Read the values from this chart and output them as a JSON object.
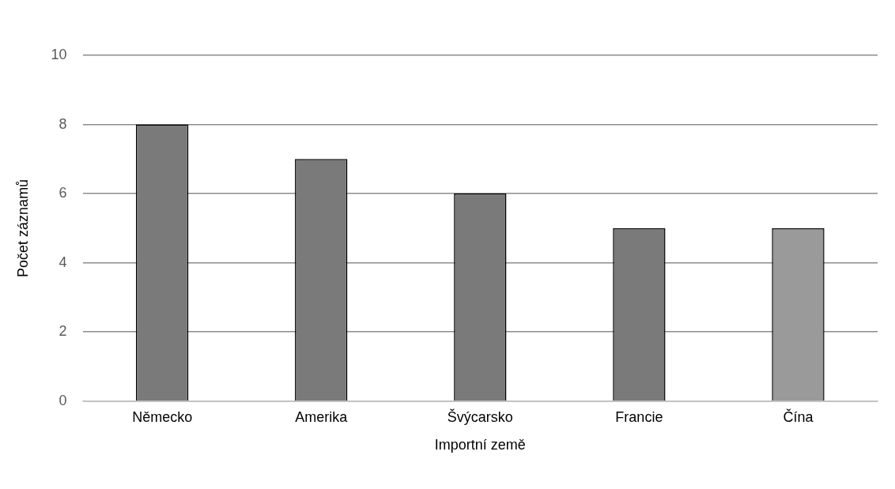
{
  "chart_data": {
    "type": "bar",
    "xlabel": "Importní země",
    "ylabel": "Počet záznamů",
    "categories": [
      "Německo",
      "Amerika",
      "Švýcarsko",
      "Francie",
      "Čína"
    ],
    "values": [
      8,
      7,
      6,
      5,
      5
    ],
    "colors": [
      "#7a7a7a",
      "#7a7a7a",
      "#7a7a7a",
      "#7a7a7a",
      "#9a9a9a"
    ],
    "ylim": [
      0,
      10
    ],
    "yticks": [
      0,
      2,
      4,
      6,
      8,
      10
    ],
    "grid": "y",
    "legend": false
  }
}
